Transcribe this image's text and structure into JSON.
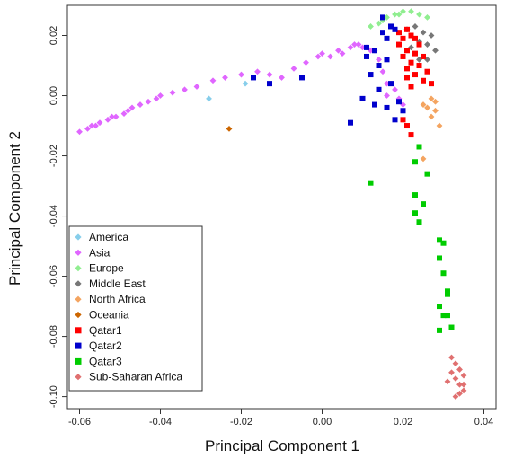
{
  "chart_data": {
    "type": "scatter",
    "title": "",
    "xlabel": "Principal Component 1",
    "ylabel": "Principal Component 2",
    "xlim": [
      -0.063,
      0.043
    ],
    "ylim": [
      -0.104,
      0.03
    ],
    "xticks": [
      -0.06,
      -0.04,
      -0.02,
      0.0,
      0.02,
      0.04
    ],
    "xtick_labels": [
      "-0.06",
      "-0.04",
      "-0.02",
      "0.00",
      "0.02",
      "0.04"
    ],
    "yticks": [
      -0.1,
      -0.08,
      -0.06,
      -0.04,
      -0.02,
      0.0,
      0.02
    ],
    "ytick_labels": [
      "-0.10",
      "-0.08",
      "-0.06",
      "-0.04",
      "-0.02",
      "0.00",
      "0.02"
    ],
    "grid": false,
    "legend_position": "bottom-left",
    "series": [
      {
        "name": "America",
        "color": "#87CEEB",
        "marker": "diamond",
        "points": [
          [
            -0.028,
            -0.001
          ],
          [
            -0.019,
            0.004
          ]
        ]
      },
      {
        "name": "Asia",
        "color": "#E066FF",
        "marker": "diamond",
        "points": [
          [
            -0.06,
            -0.012
          ],
          [
            -0.058,
            -0.011
          ],
          [
            -0.057,
            -0.01
          ],
          [
            -0.055,
            -0.009
          ],
          [
            -0.053,
            -0.008
          ],
          [
            -0.051,
            -0.007
          ],
          [
            -0.049,
            -0.006
          ],
          [
            -0.047,
            -0.004
          ],
          [
            -0.045,
            -0.003
          ],
          [
            -0.043,
            -0.002
          ],
          [
            -0.04,
            0.0
          ],
          [
            -0.037,
            0.001
          ],
          [
            -0.034,
            0.002
          ],
          [
            -0.031,
            0.003
          ],
          [
            -0.027,
            0.005
          ],
          [
            -0.024,
            0.006
          ],
          [
            -0.02,
            0.007
          ],
          [
            -0.016,
            0.008
          ],
          [
            -0.013,
            0.007
          ],
          [
            -0.01,
            0.006
          ],
          [
            -0.007,
            0.009
          ],
          [
            -0.004,
            0.011
          ],
          [
            -0.001,
            0.013
          ],
          [
            0.002,
            0.013
          ],
          [
            0.005,
            0.014
          ],
          [
            0.007,
            0.016
          ],
          [
            0.009,
            0.017
          ],
          [
            0.011,
            0.016
          ],
          [
            0.013,
            0.015
          ],
          [
            0.014,
            0.012
          ],
          [
            0.015,
            0.008
          ],
          [
            0.016,
            0.004
          ],
          [
            0.018,
            0.002
          ],
          [
            0.019,
            -0.001
          ],
          [
            0.02,
            -0.003
          ],
          [
            0.016,
            0.0
          ],
          [
            0.01,
            0.016
          ],
          [
            0.012,
            0.015
          ],
          [
            -0.056,
            -0.01
          ],
          [
            -0.052,
            -0.007
          ],
          [
            -0.048,
            -0.005
          ],
          [
            -0.041,
            -0.001
          ],
          [
            0.0,
            0.014
          ],
          [
            0.004,
            0.015
          ],
          [
            0.008,
            0.017
          ]
        ]
      },
      {
        "name": "Europe",
        "color": "#90EE90",
        "marker": "diamond",
        "points": [
          [
            0.012,
            0.023
          ],
          [
            0.014,
            0.024
          ],
          [
            0.016,
            0.026
          ],
          [
            0.018,
            0.027
          ],
          [
            0.02,
            0.028
          ],
          [
            0.022,
            0.028
          ],
          [
            0.024,
            0.027
          ],
          [
            0.026,
            0.026
          ],
          [
            0.015,
            0.025
          ],
          [
            0.019,
            0.027
          ]
        ]
      },
      {
        "name": "Middle East",
        "color": "#777777",
        "marker": "diamond",
        "points": [
          [
            0.021,
            0.022
          ],
          [
            0.023,
            0.023
          ],
          [
            0.025,
            0.021
          ],
          [
            0.027,
            0.02
          ],
          [
            0.026,
            0.017
          ],
          [
            0.024,
            0.018
          ],
          [
            0.022,
            0.016
          ],
          [
            0.028,
            0.015
          ],
          [
            0.026,
            0.012
          ],
          [
            0.024,
            0.012
          ]
        ]
      },
      {
        "name": "North Africa",
        "color": "#F4A460",
        "marker": "diamond",
        "points": [
          [
            0.027,
            -0.001
          ],
          [
            0.028,
            -0.002
          ],
          [
            0.026,
            -0.004
          ],
          [
            0.028,
            -0.005
          ],
          [
            0.027,
            -0.007
          ],
          [
            0.025,
            -0.003
          ],
          [
            0.029,
            -0.01
          ],
          [
            0.025,
            -0.021
          ]
        ]
      },
      {
        "name": "Oceania",
        "color": "#CC6600",
        "marker": "diamond",
        "points": [
          [
            -0.023,
            -0.011
          ]
        ]
      },
      {
        "name": "Qatar1",
        "color": "#FF0000",
        "marker": "square",
        "points": [
          [
            0.019,
            0.021
          ],
          [
            0.02,
            0.019
          ],
          [
            0.021,
            0.022
          ],
          [
            0.022,
            0.02
          ],
          [
            0.023,
            0.019
          ],
          [
            0.024,
            0.017
          ],
          [
            0.019,
            0.017
          ],
          [
            0.021,
            0.015
          ],
          [
            0.023,
            0.014
          ],
          [
            0.025,
            0.013
          ],
          [
            0.02,
            0.013
          ],
          [
            0.022,
            0.011
          ],
          [
            0.024,
            0.01
          ],
          [
            0.026,
            0.008
          ],
          [
            0.023,
            0.007
          ],
          [
            0.021,
            0.006
          ],
          [
            0.025,
            0.005
          ],
          [
            0.022,
            0.003
          ],
          [
            0.02,
            -0.008
          ],
          [
            0.021,
            -0.01
          ],
          [
            0.022,
            -0.013
          ],
          [
            0.027,
            0.004
          ],
          [
            0.021,
            0.009
          ]
        ]
      },
      {
        "name": "Qatar2",
        "color": "#0000CC",
        "marker": "square",
        "points": [
          [
            -0.017,
            0.006
          ],
          [
            -0.013,
            0.004
          ],
          [
            -0.005,
            0.006
          ],
          [
            0.011,
            0.013
          ],
          [
            0.013,
            0.015
          ],
          [
            0.015,
            0.021
          ],
          [
            0.016,
            0.019
          ],
          [
            0.017,
            0.023
          ],
          [
            0.018,
            0.022
          ],
          [
            0.014,
            0.01
          ],
          [
            0.016,
            0.012
          ],
          [
            0.012,
            0.007
          ],
          [
            0.014,
            0.002
          ],
          [
            0.017,
            0.004
          ],
          [
            0.01,
            -0.001
          ],
          [
            0.013,
            -0.003
          ],
          [
            0.016,
            -0.004
          ],
          [
            0.019,
            -0.002
          ],
          [
            0.018,
            -0.008
          ],
          [
            0.007,
            -0.009
          ],
          [
            0.015,
            0.026
          ],
          [
            0.02,
            -0.005
          ],
          [
            0.011,
            0.016
          ]
        ]
      },
      {
        "name": "Qatar3",
        "color": "#00CC00",
        "marker": "square",
        "points": [
          [
            0.024,
            -0.017
          ],
          [
            0.023,
            -0.022
          ],
          [
            0.026,
            -0.026
          ],
          [
            0.012,
            -0.029
          ],
          [
            0.023,
            -0.033
          ],
          [
            0.025,
            -0.036
          ],
          [
            0.023,
            -0.039
          ],
          [
            0.024,
            -0.042
          ],
          [
            0.029,
            -0.048
          ],
          [
            0.03,
            -0.049
          ],
          [
            0.029,
            -0.054
          ],
          [
            0.03,
            -0.059
          ],
          [
            0.031,
            -0.066
          ],
          [
            0.029,
            -0.07
          ],
          [
            0.03,
            -0.073
          ],
          [
            0.031,
            -0.073
          ],
          [
            0.032,
            -0.077
          ],
          [
            0.029,
            -0.078
          ],
          [
            0.031,
            -0.065
          ]
        ]
      },
      {
        "name": "Sub-Saharan Africa",
        "color": "#E07070",
        "marker": "diamond",
        "points": [
          [
            0.032,
            -0.087
          ],
          [
            0.033,
            -0.089
          ],
          [
            0.034,
            -0.091
          ],
          [
            0.035,
            -0.093
          ],
          [
            0.033,
            -0.094
          ],
          [
            0.034,
            -0.096
          ],
          [
            0.035,
            -0.098
          ],
          [
            0.033,
            -0.1
          ],
          [
            0.034,
            -0.099
          ],
          [
            0.032,
            -0.092
          ],
          [
            0.035,
            -0.096
          ],
          [
            0.031,
            -0.095
          ]
        ]
      }
    ]
  }
}
